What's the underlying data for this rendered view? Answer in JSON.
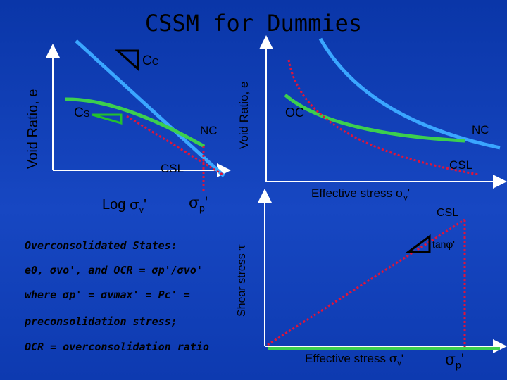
{
  "title": "CSSM for Dummies",
  "left_panel": {
    "y_label": "Void Ratio, e",
    "cc_label": "C",
    "cc_sub": "C",
    "cs_label": "C",
    "cs_sub": "S",
    "nc_label": "NC",
    "csl_label": "CSL",
    "x_label_text": "Log ",
    "x_label_sym": "σ",
    "x_label_sub": "v",
    "x_label_prime": "'",
    "sigma_p_sym": "σ",
    "sigma_p_sub": "p",
    "sigma_p_prime": "'"
  },
  "right_top_panel": {
    "y_label": "Void Ratio, e",
    "oc_label": "OC",
    "nc_label": "NC",
    "csl_label": "CSL",
    "x_label_text": "Effective stress ",
    "x_label_sym": "σ",
    "x_label_sub": "v",
    "x_label_prime": "'"
  },
  "right_bottom_panel": {
    "y_label_text": "Shear stress ",
    "y_label_sym": "τ",
    "csl_label": "CSL",
    "tan_label_text": "tan",
    "tan_label_sym": "φ",
    "tan_label_prime": "'",
    "x_label_text": "Effective stress ",
    "x_label_sym": "σ",
    "x_label_sub": "v",
    "x_label_prime": "'",
    "sigma_p_sym": "σ",
    "sigma_p_sub": "p",
    "sigma_p_prime": "'"
  },
  "notes": {
    "heading": "Overconsolidated States:",
    "line1": "e0, σvo', and OCR = σp'/σvo'",
    "line2": "where σp' = σvmax' = Pc' =",
    "line3": "preconsolidation stress;",
    "line4": "OCR = overconsolidation ratio"
  },
  "colors": {
    "background": "#1747c2",
    "axis": "#ffffff",
    "nc_line": "#3aa6ff",
    "green_line": "#3ccf4e",
    "csl_red": "#e0143a"
  }
}
